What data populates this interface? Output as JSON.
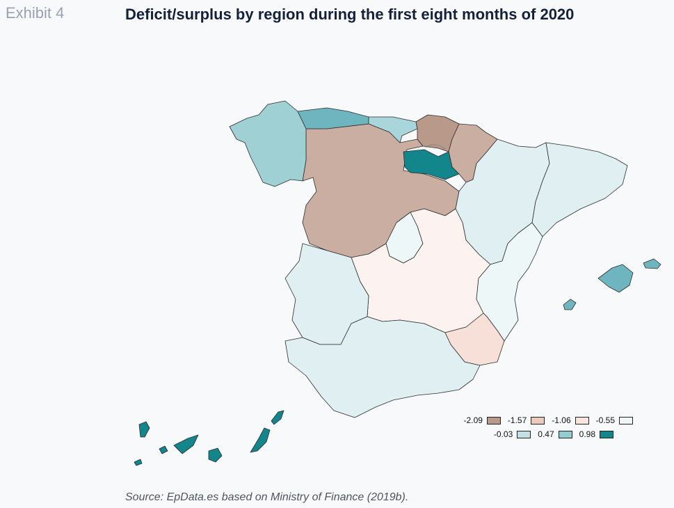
{
  "header": {
    "exhibit": "Exhibit 4",
    "title": "Deficit/surplus by region during the first eight months of 2020"
  },
  "source": "Source: EpData.es based on Ministry of Finance (2019b).",
  "legend": {
    "row1": [
      {
        "label": "-2.09",
        "color": "#b8998a"
      },
      {
        "label": "-1.57",
        "color": "#eccbbd"
      },
      {
        "label": "-1.06",
        "color": "#f8e6de"
      },
      {
        "label": "-0.55",
        "color": "#eef6f6"
      }
    ],
    "row2": [
      {
        "label": "-0.03",
        "color": "#c3e1e4"
      },
      {
        "label": "0.47",
        "color": "#93cdd1"
      },
      {
        "label": "0.98",
        "color": "#13868c"
      }
    ]
  },
  "regions": [
    {
      "name": "Galicia",
      "color": "#9fd0d4"
    },
    {
      "name": "Asturias",
      "color": "#6fb5bf"
    },
    {
      "name": "Cantabria",
      "color": "#a8d6da"
    },
    {
      "name": "País Vasco",
      "color": "#b8998a"
    },
    {
      "name": "Navarra",
      "color": "#c9aea1"
    },
    {
      "name": "La Rioja",
      "color": "#13868c"
    },
    {
      "name": "Aragón",
      "color": "#e0eff1"
    },
    {
      "name": "Cataluña",
      "color": "#e0eff1"
    },
    {
      "name": "Castilla y León",
      "color": "#e0eff1"
    },
    {
      "name": "Madrid",
      "color": "#eef7f7"
    },
    {
      "name": "Castilla-La Mancha",
      "color": "#fcf3f1"
    },
    {
      "name": "Comunidad Valenciana",
      "color": "#eef7f7"
    },
    {
      "name": "Extremadura",
      "color": "#e0eff1"
    },
    {
      "name": "Andalucía",
      "color": "#e0eff1"
    },
    {
      "name": "Murcia",
      "color": "#f6e0d8"
    },
    {
      "name": "Islas Baleares",
      "color": "#6fb5bf"
    },
    {
      "name": "Canarias",
      "color": "#13868c"
    }
  ]
}
